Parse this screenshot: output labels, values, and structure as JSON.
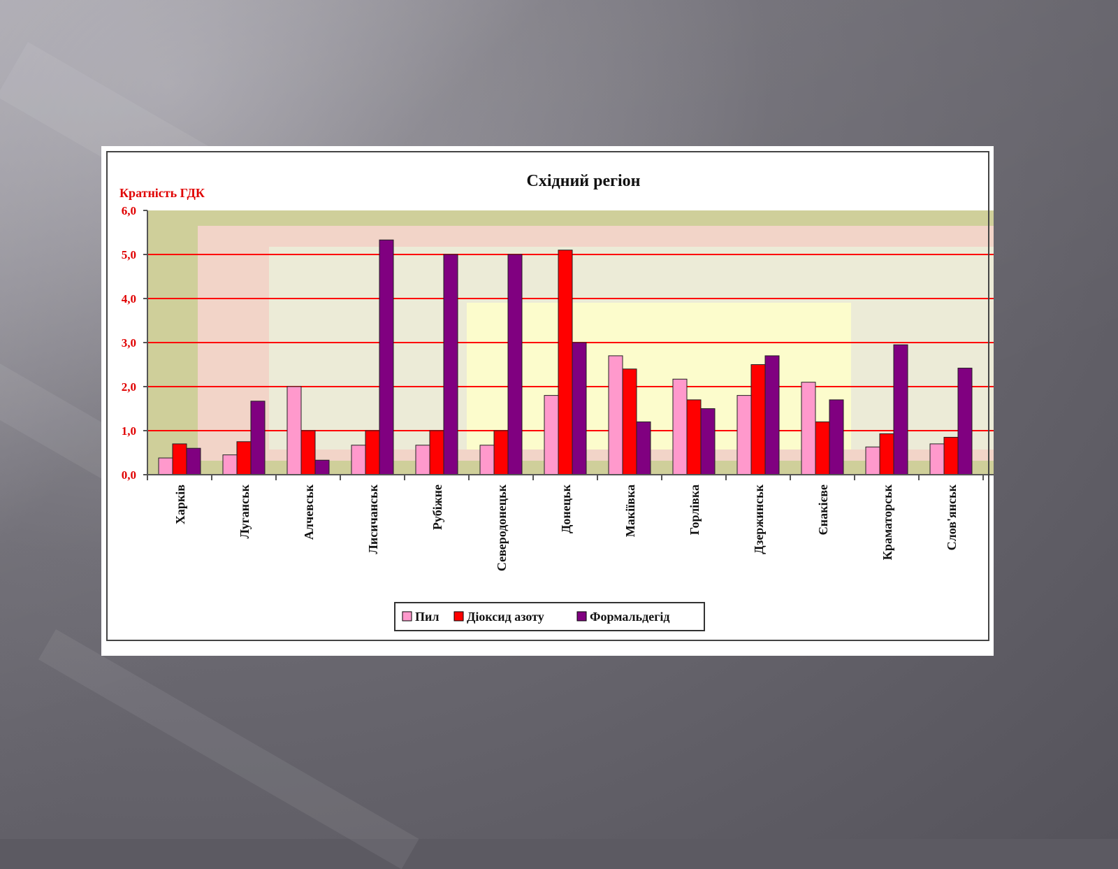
{
  "slide": {
    "background_color": "#5c5a62"
  },
  "chart_data": {
    "type": "bar",
    "title": "Східний регіон",
    "ylabel": "Кратність ГДК",
    "xlabel": "",
    "ylim": [
      0,
      6
    ],
    "yticks": [
      "0,0",
      "1,0",
      "2,0",
      "3,0",
      "4,0",
      "5,0",
      "6,0"
    ],
    "grid": true,
    "legend_position": "bottom",
    "categories": [
      "Харків",
      "Луганськ",
      "Алчевськ",
      "Лисичанськ",
      "Рубіжне",
      "Северодонецьк",
      "Донецьк",
      "Макіївка",
      "Горлівка",
      "Дзержинськ",
      "Єнакієве",
      "Краматорськ",
      "Слов'янськ"
    ],
    "series": [
      {
        "name": "Пил",
        "color": "#ff99cc",
        "values": [
          0.38,
          0.45,
          2.0,
          0.67,
          0.67,
          0.67,
          1.8,
          2.7,
          2.17,
          1.8,
          2.1,
          0.63,
          0.7
        ]
      },
      {
        "name": "Діоксид азоту",
        "color": "#ff0000",
        "values": [
          0.7,
          0.75,
          1.0,
          1.0,
          1.0,
          1.0,
          5.1,
          2.4,
          1.7,
          2.5,
          1.2,
          0.93,
          0.85
        ]
      },
      {
        "name": "Формальдегід",
        "color": "#800080",
        "values": [
          0.6,
          1.67,
          0.33,
          5.33,
          5.0,
          5.0,
          3.0,
          1.2,
          1.5,
          2.7,
          1.7,
          2.95,
          2.42
        ]
      }
    ]
  }
}
